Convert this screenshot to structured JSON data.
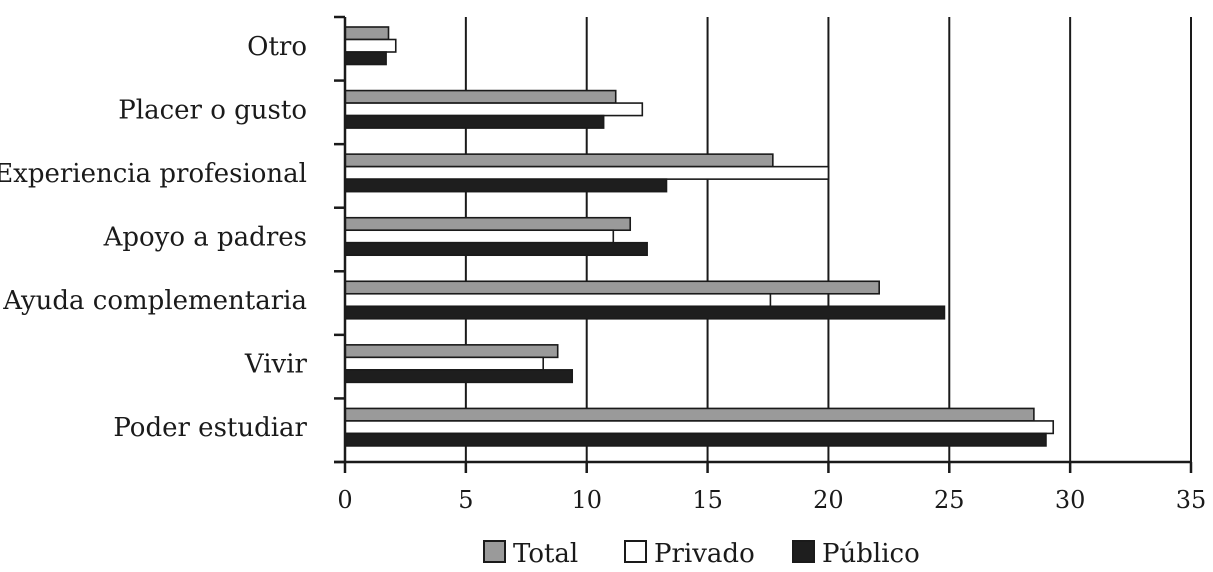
{
  "chart_data": {
    "type": "bar",
    "orientation": "horizontal",
    "title": "",
    "xlabel": "",
    "ylabel": "",
    "categories": [
      "Otro",
      "Placer o gusto",
      "Experiencia profesional",
      "Apoyo a padres",
      "Ayuda complementaria",
      "Vivir",
      "Poder estudiar"
    ],
    "series": [
      {
        "name": "Total",
        "color": "#9a9a9a",
        "values": [
          1.8,
          11.2,
          17.7,
          11.8,
          22.1,
          8.8,
          28.5
        ]
      },
      {
        "name": "Privado",
        "color": "#ffffff",
        "values": [
          2.1,
          12.3,
          20.0,
          11.1,
          17.6,
          8.2,
          29.3
        ]
      },
      {
        "name": "Público",
        "color": "#1e1e1e",
        "values": [
          1.7,
          10.7,
          13.3,
          12.5,
          24.8,
          9.4,
          29.0
        ]
      }
    ],
    "xlim": [
      0,
      35
    ],
    "xticks": [
      0,
      5,
      10,
      15,
      20,
      25,
      30,
      35
    ],
    "grid": "vertical",
    "legend": "bottom"
  }
}
